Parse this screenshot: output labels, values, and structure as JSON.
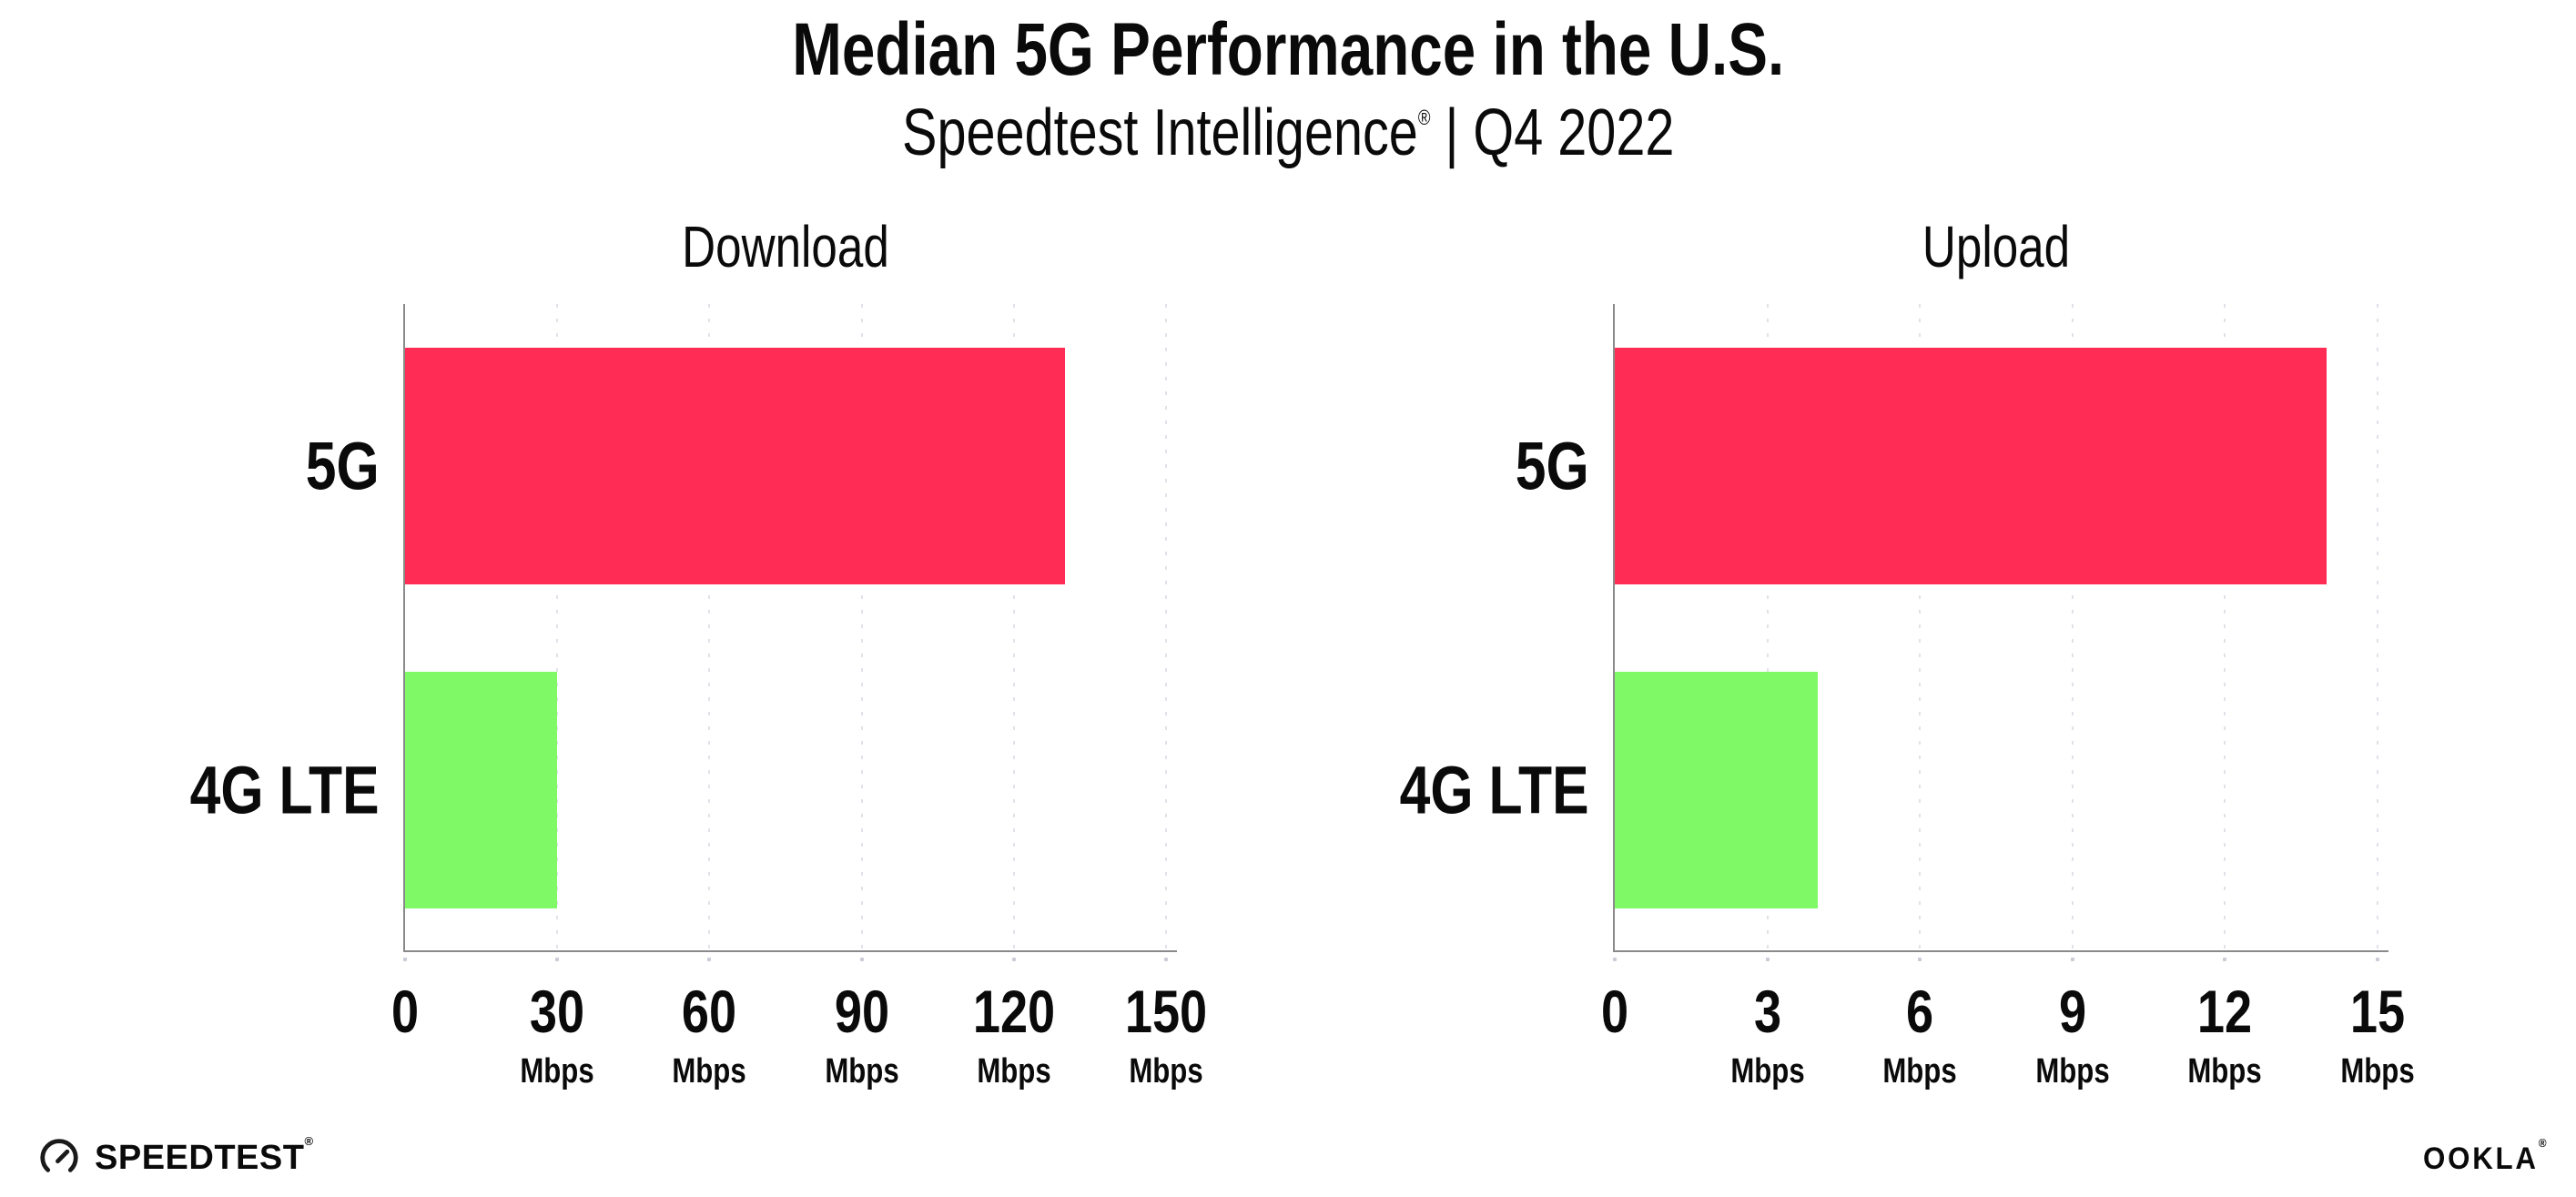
{
  "header": {
    "title": "Median 5G Performance in the U.S.",
    "subtitle_brand": "Speedtest Intelligence",
    "subtitle_reg": "®",
    "subtitle_rest": " | Q4 2022"
  },
  "colors": {
    "bar_5g": "#FF2D55",
    "bar_4g_lte": "#7FFA66",
    "gridline": "#E1E1EA",
    "axis": "#8A8A8A"
  },
  "chart_data": [
    {
      "type": "bar",
      "orientation": "horizontal",
      "title": "Download",
      "categories": [
        "5G",
        "4G LTE"
      ],
      "values": [
        130,
        30
      ],
      "unit": "Mbps",
      "xlim": [
        0,
        150
      ],
      "grid": "dotted-vertical",
      "legend": "none",
      "xticks": [
        {
          "label": "0",
          "unit": ""
        },
        {
          "label": "30",
          "unit": "Mbps"
        },
        {
          "label": "60",
          "unit": "Mbps"
        },
        {
          "label": "90",
          "unit": "Mbps"
        },
        {
          "label": "120",
          "unit": "Mbps"
        },
        {
          "label": "150",
          "unit": "Mbps"
        }
      ]
    },
    {
      "type": "bar",
      "orientation": "horizontal",
      "title": "Upload",
      "categories": [
        "5G",
        "4G LTE"
      ],
      "values": [
        14,
        4
      ],
      "unit": "Mbps",
      "xlim": [
        0,
        15
      ],
      "grid": "dotted-vertical",
      "legend": "none",
      "xticks": [
        {
          "label": "0",
          "unit": ""
        },
        {
          "label": "3",
          "unit": "Mbps"
        },
        {
          "label": "6",
          "unit": "Mbps"
        },
        {
          "label": "9",
          "unit": "Mbps"
        },
        {
          "label": "12",
          "unit": "Mbps"
        },
        {
          "label": "15",
          "unit": "Mbps"
        }
      ]
    }
  ],
  "footer": {
    "speedtest_label": "SPEEDTEST",
    "speedtest_reg": "®",
    "ookla_label": "OOKLA",
    "ookla_reg": "®"
  }
}
